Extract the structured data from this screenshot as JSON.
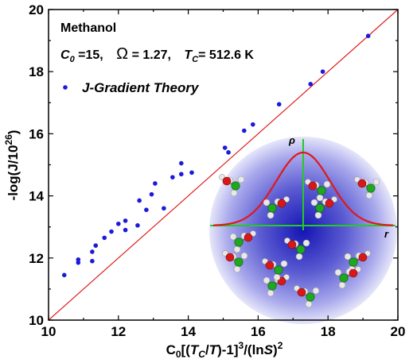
{
  "chart_data": {
    "type": "scatter",
    "title": "",
    "xlabel": "C0[(TC/T)-1]^3/(ln S)^2",
    "ylabel": "-log(J/10^26)",
    "xlim": [
      10,
      20
    ],
    "ylim": [
      10,
      20
    ],
    "x_ticks": [
      10,
      12,
      14,
      16,
      18,
      20
    ],
    "y_ticks": [
      10,
      12,
      14,
      16,
      18,
      20
    ],
    "annotations": {
      "substance": "Methanol",
      "c0_label": "C",
      "c0_sub": "0",
      "c0_value": " =15,",
      "omega_label": "Ω",
      "omega_value": " = 1.27,",
      "tc_label": "T",
      "tc_sub": "C",
      "tc_value": "= 512.6 K"
    },
    "legend": {
      "placement": "top-left",
      "label": "J-Gradient Theory"
    },
    "inset_labels": {
      "density": "ρ",
      "radius": "r"
    },
    "reference_line": {
      "from": [
        10,
        10
      ],
      "to": [
        20,
        20
      ],
      "color": "#e02020"
    },
    "series": [
      {
        "name": "J-Gradient Theory",
        "color": "#1a1adb",
        "x": [
          10.45,
          10.85,
          10.85,
          11.25,
          11.25,
          11.35,
          11.6,
          11.8,
          12.0,
          12.2,
          12.2,
          12.55,
          12.6,
          12.8,
          12.95,
          13.05,
          13.3,
          13.55,
          13.8,
          13.8,
          14.1,
          15.05,
          15.15,
          15.6,
          15.85,
          16.6,
          17.5,
          17.85,
          19.15
        ],
        "y": [
          11.45,
          11.85,
          11.95,
          11.9,
          12.2,
          12.4,
          12.65,
          12.85,
          13.1,
          12.9,
          13.2,
          13.05,
          13.85,
          13.55,
          14.05,
          14.4,
          13.6,
          14.6,
          14.7,
          15.05,
          14.75,
          15.55,
          15.4,
          16.1,
          16.3,
          16.95,
          17.6,
          18.0,
          19.15
        ]
      }
    ]
  }
}
